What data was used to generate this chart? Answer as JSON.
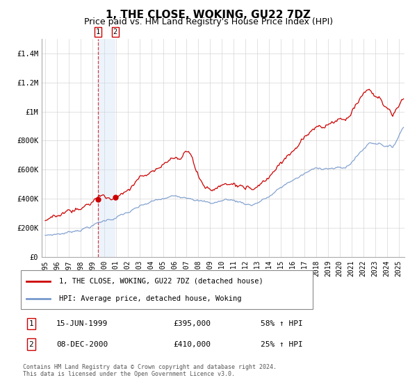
{
  "title": "1, THE CLOSE, WOKING, GU22 7DZ",
  "subtitle": "Price paid vs. HM Land Registry's House Price Index (HPI)",
  "xlim": [
    1994.7,
    2025.5
  ],
  "ylim": [
    0,
    1500000
  ],
  "yticks": [
    0,
    200000,
    400000,
    600000,
    800000,
    1000000,
    1200000,
    1400000
  ],
  "ytick_labels": [
    "£0",
    "£200K",
    "£400K",
    "£600K",
    "£800K",
    "£1M",
    "£1.2M",
    "£1.4M"
  ],
  "xticks": [
    1995,
    1996,
    1997,
    1998,
    1999,
    2000,
    2001,
    2002,
    2003,
    2004,
    2005,
    2006,
    2007,
    2008,
    2009,
    2010,
    2011,
    2012,
    2013,
    2014,
    2015,
    2016,
    2017,
    2018,
    2019,
    2020,
    2021,
    2022,
    2023,
    2024,
    2025
  ],
  "red_line_color": "#cc0000",
  "blue_line_color": "#7799cc",
  "dashed_line_color": "#cc0000",
  "shade_color": "#ccddf5",
  "marker_color": "#cc0000",
  "transaction1_date": 1999.46,
  "transaction1_price": 395000,
  "transaction2_date": 2000.93,
  "transaction2_price": 410000,
  "legend_line1": "1, THE CLOSE, WOKING, GU22 7DZ (detached house)",
  "legend_line2": "HPI: Average price, detached house, Woking",
  "table_row1_num": "1",
  "table_row1_date": "15-JUN-1999",
  "table_row1_price": "£395,000",
  "table_row1_hpi": "58% ↑ HPI",
  "table_row2_num": "2",
  "table_row2_date": "08-DEC-2000",
  "table_row2_price": "£410,000",
  "table_row2_hpi": "25% ↑ HPI",
  "footnote": "Contains HM Land Registry data © Crown copyright and database right 2024.\nThis data is licensed under the Open Government Licence v3.0.",
  "background_color": "#ffffff",
  "grid_color": "#cccccc",
  "title_fontsize": 11,
  "subtitle_fontsize": 9
}
